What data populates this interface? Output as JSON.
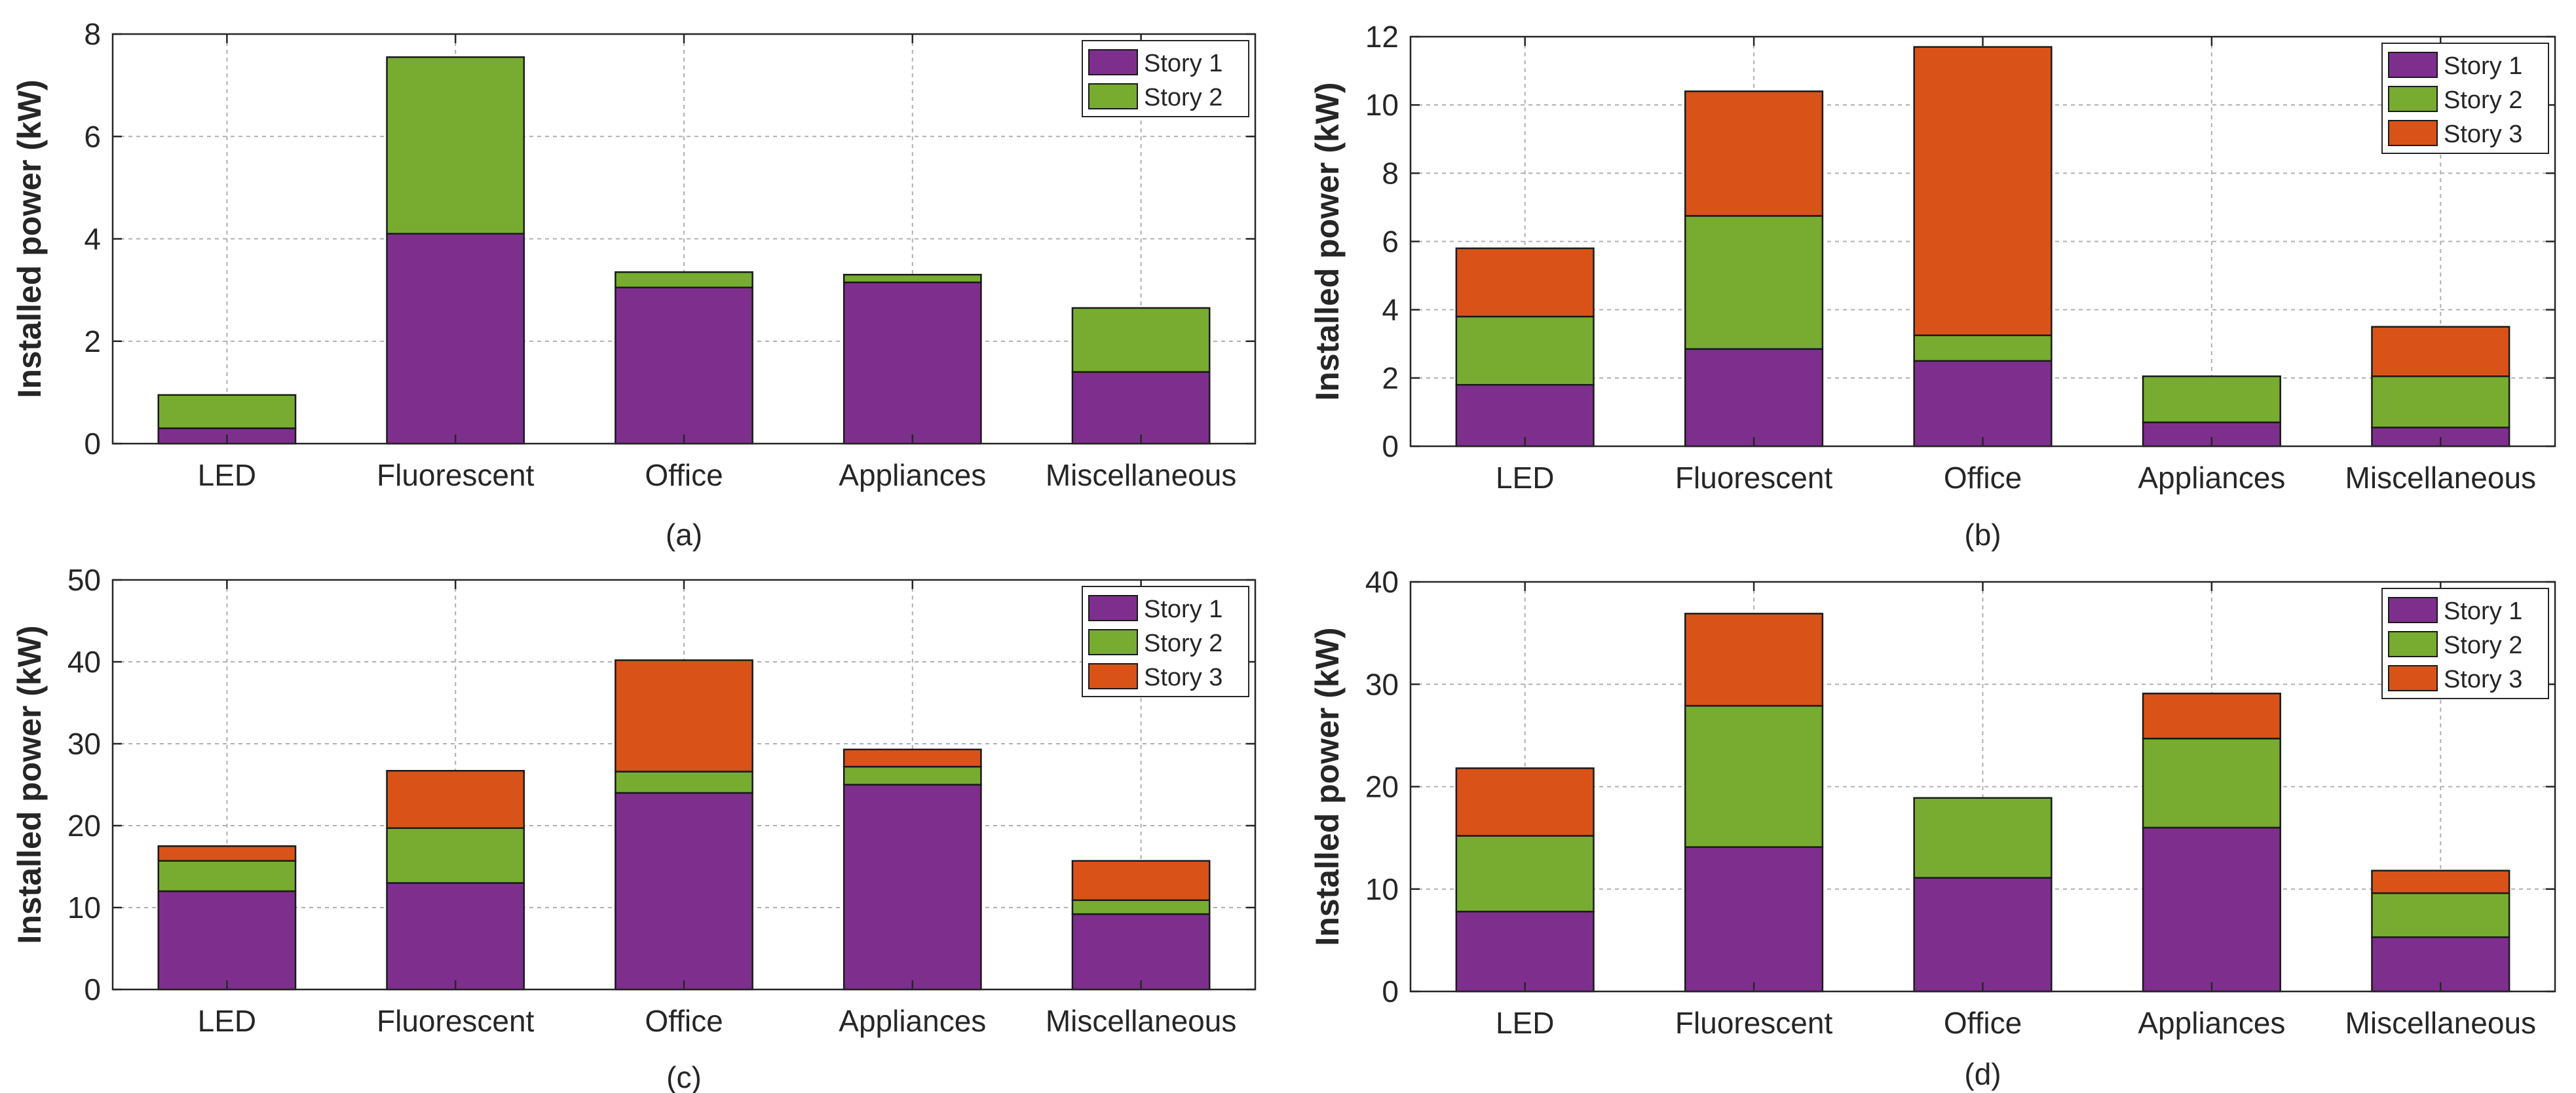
{
  "colors": {
    "story1": "#7E2F8E",
    "story2": "#77AC30",
    "story3": "#D95319",
    "grid": "#b0b0b0",
    "axis": "#262626"
  },
  "chart_data": [
    {
      "type": "bar",
      "stacked": true,
      "caption": "(a)",
      "ylabel": "Installed power (kW)",
      "categories": [
        "LED",
        "Fluorescent",
        "Office",
        "Appliances",
        "Miscellaneous"
      ],
      "ylim": [
        0,
        8
      ],
      "yticks": [
        0,
        2,
        4,
        6,
        8
      ],
      "grid": true,
      "legend": "top-right",
      "series": [
        {
          "name": "Story 1",
          "values": [
            0.3,
            4.1,
            3.05,
            3.15,
            1.4
          ]
        },
        {
          "name": "Story 2",
          "values": [
            0.65,
            3.45,
            0.3,
            0.15,
            1.25
          ]
        }
      ]
    },
    {
      "type": "bar",
      "stacked": true,
      "caption": "(b)",
      "ylabel": "Installed power (kW)",
      "categories": [
        "LED",
        "Fluorescent",
        "Office",
        "Appliances",
        "Miscellaneous"
      ],
      "ylim": [
        0,
        12
      ],
      "yticks": [
        0,
        2,
        4,
        6,
        8,
        10,
        12
      ],
      "grid": true,
      "legend": "top-right",
      "series": [
        {
          "name": "Story 1",
          "values": [
            1.8,
            2.85,
            2.5,
            0.7,
            0.55
          ]
        },
        {
          "name": "Story 2",
          "values": [
            2.0,
            3.9,
            0.75,
            1.35,
            1.5
          ]
        },
        {
          "name": "Story 3",
          "values": [
            2.0,
            3.65,
            8.45,
            0.0,
            1.45
          ]
        }
      ]
    },
    {
      "type": "bar",
      "stacked": true,
      "caption": "(c)",
      "ylabel": "Installed power (kW)",
      "categories": [
        "LED",
        "Fluorescent",
        "Office",
        "Appliances",
        "Miscellaneous"
      ],
      "ylim": [
        0,
        50
      ],
      "yticks": [
        0,
        10,
        20,
        30,
        40,
        50
      ],
      "grid": true,
      "legend": "top-right",
      "series": [
        {
          "name": "Story 1",
          "values": [
            12.0,
            13.0,
            24.0,
            25.0,
            9.2
          ]
        },
        {
          "name": "Story 2",
          "values": [
            3.7,
            6.7,
            2.6,
            2.2,
            1.7
          ]
        },
        {
          "name": "Story 3",
          "values": [
            1.8,
            7.0,
            13.6,
            2.1,
            4.8
          ]
        }
      ]
    },
    {
      "type": "bar",
      "stacked": true,
      "caption": "(d)",
      "ylabel": "Installed power (kW)",
      "categories": [
        "LED",
        "Fluorescent",
        "Office",
        "Appliances",
        "Miscellaneous"
      ],
      "ylim": [
        0,
        40
      ],
      "yticks": [
        0,
        10,
        20,
        30,
        40
      ],
      "grid": true,
      "legend": "top-right",
      "series": [
        {
          "name": "Story 1",
          "values": [
            7.8,
            14.1,
            11.1,
            16.0,
            5.3
          ]
        },
        {
          "name": "Story 2",
          "values": [
            7.4,
            13.8,
            7.8,
            8.7,
            4.3
          ]
        },
        {
          "name": "Story 3",
          "values": [
            6.6,
            9.0,
            0.0,
            4.4,
            2.2
          ]
        }
      ]
    }
  ]
}
